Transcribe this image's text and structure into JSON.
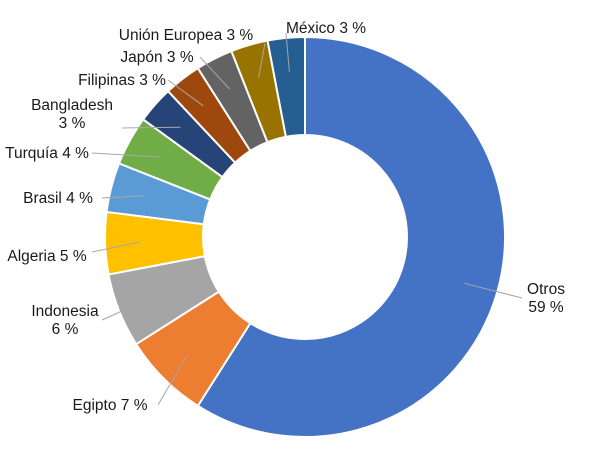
{
  "chart_data": {
    "type": "pie",
    "variant": "donut",
    "title": "",
    "legend": "none",
    "series": [
      {
        "values": [
          59,
          7,
          6,
          5,
          4,
          4,
          3,
          3,
          3,
          3,
          3
        ],
        "categories": [
          "Otros",
          "Egipto",
          "Indonesia",
          "Algeria",
          "Brasil",
          "Turquía",
          "Bangladesh",
          "Filipinas",
          "Japón",
          "Unión Europea",
          "México"
        ]
      }
    ],
    "labels": [
      {
        "lines": [
          "Otros",
          "59 %"
        ]
      },
      {
        "lines": [
          "Egipto 7 %"
        ]
      },
      {
        "lines": [
          "Indonesia",
          "6 %"
        ]
      },
      {
        "lines": [
          "Algeria 5 %"
        ]
      },
      {
        "lines": [
          "Brasil 4 %"
        ]
      },
      {
        "lines": [
          "Turquía 4 %"
        ]
      },
      {
        "lines": [
          "Bangladesh",
          "3 %"
        ]
      },
      {
        "lines": [
          "Filipinas 3 %"
        ]
      },
      {
        "lines": [
          "Japón 3 %"
        ]
      },
      {
        "lines": [
          "Unión Europea 3 %"
        ]
      },
      {
        "lines": [
          "México 3 %"
        ]
      }
    ],
    "colors": [
      "#4472C4",
      "#ED7D31",
      "#A5A5A5",
      "#FFC000",
      "#5B9BD5",
      "#70AD47",
      "#264478",
      "#9E480E",
      "#636363",
      "#997300",
      "#255E91"
    ]
  }
}
